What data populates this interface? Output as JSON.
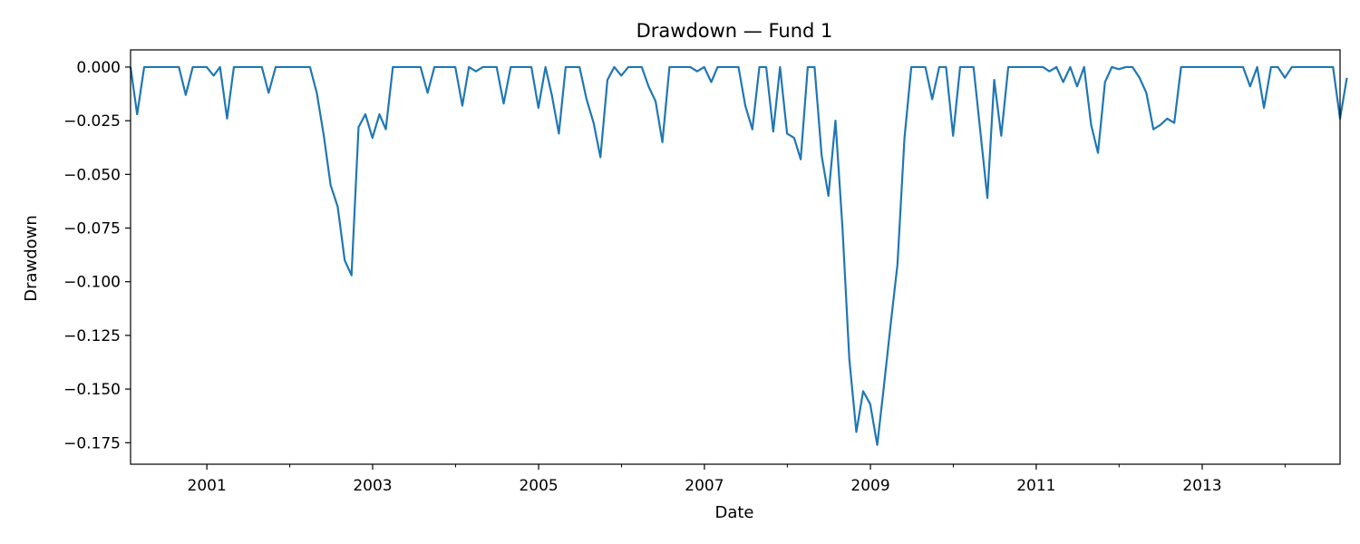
{
  "chart_data": {
    "type": "line",
    "title": "Drawdown — Fund 1",
    "xlabel": "Date",
    "ylabel": "Drawdown",
    "xlim": [
      "2000-01-31",
      "2014-08-31"
    ],
    "ylim": [
      -0.185,
      0.008
    ],
    "grid": false,
    "x_ticks": [
      {
        "date": "2001-01-01",
        "label": "2001"
      },
      {
        "date": "2003-01-01",
        "label": "2003"
      },
      {
        "date": "2005-01-01",
        "label": "2005"
      },
      {
        "date": "2007-01-01",
        "label": "2007"
      },
      {
        "date": "2009-01-01",
        "label": "2009"
      },
      {
        "date": "2011-01-01",
        "label": "2011"
      },
      {
        "date": "2013-01-01",
        "label": "2013"
      }
    ],
    "x_minor_ticks": [
      "2000-01-01",
      "2002-01-01",
      "2004-01-01",
      "2006-01-01",
      "2008-01-01",
      "2010-01-01",
      "2012-01-01",
      "2014-01-01"
    ],
    "y_ticks": [
      {
        "value": 0.0,
        "label": "0.000"
      },
      {
        "value": -0.025,
        "label": "−0.025"
      },
      {
        "value": -0.05,
        "label": "−0.050"
      },
      {
        "value": -0.075,
        "label": "−0.075"
      },
      {
        "value": -0.1,
        "label": "−0.100"
      },
      {
        "value": -0.125,
        "label": "−0.125"
      },
      {
        "value": -0.15,
        "label": "−0.150"
      },
      {
        "value": -0.175,
        "label": "−0.175"
      }
    ],
    "series": [
      {
        "color": "#1f77b4",
        "start": "2000-01",
        "frequency": "monthly",
        "values": [
          0.0,
          -0.022,
          0.0,
          0.0,
          0.0,
          0.0,
          0.0,
          0.0,
          -0.013,
          0.0,
          0.0,
          0.0,
          -0.004,
          0.0,
          -0.024,
          0.0,
          0.0,
          0.0,
          0.0,
          0.0,
          -0.012,
          0.0,
          0.0,
          0.0,
          0.0,
          0.0,
          0.0,
          -0.012,
          -0.032,
          -0.055,
          -0.065,
          -0.09,
          -0.097,
          -0.028,
          -0.022,
          -0.033,
          -0.022,
          -0.029,
          0.0,
          0.0,
          0.0,
          0.0,
          0.0,
          -0.012,
          0.0,
          0.0,
          0.0,
          0.0,
          -0.018,
          0.0,
          -0.002,
          0.0,
          0.0,
          0.0,
          -0.017,
          0.0,
          0.0,
          0.0,
          0.0,
          -0.019,
          0.0,
          -0.013,
          -0.031,
          0.0,
          0.0,
          0.0,
          -0.015,
          -0.026,
          -0.042,
          -0.006,
          0.0,
          -0.004,
          0.0,
          0.0,
          0.0,
          -0.009,
          -0.016,
          -0.035,
          0.0,
          0.0,
          0.0,
          0.0,
          -0.002,
          0.0,
          -0.007,
          0.0,
          0.0,
          0.0,
          0.0,
          -0.018,
          -0.029,
          0.0,
          0.0,
          -0.03,
          0.0,
          -0.031,
          -0.033,
          -0.043,
          0.0,
          0.0,
          -0.041,
          -0.06,
          -0.025,
          -0.075,
          -0.136,
          -0.17,
          -0.151,
          -0.157,
          -0.176,
          -0.15,
          -0.12,
          -0.092,
          -0.033,
          0.0,
          0.0,
          0.0,
          -0.015,
          0.0,
          0.0,
          -0.032,
          0.0,
          0.0,
          0.0,
          -0.03,
          -0.061,
          -0.006,
          -0.032,
          0.0,
          0.0,
          0.0,
          0.0,
          0.0,
          0.0,
          -0.002,
          0.0,
          -0.007,
          0.0,
          -0.009,
          0.0,
          -0.027,
          -0.04,
          -0.007,
          0.0,
          -0.001,
          0.0,
          0.0,
          -0.005,
          -0.012,
          -0.029,
          -0.027,
          -0.024,
          -0.026,
          0.0,
          0.0,
          0.0,
          0.0,
          0.0,
          0.0,
          0.0,
          0.0,
          0.0,
          0.0,
          -0.009,
          0.0,
          -0.019,
          0.0,
          0.0,
          -0.005,
          0.0,
          0.0,
          0.0,
          0.0,
          0.0,
          0.0,
          0.0,
          -0.024,
          -0.005
        ]
      }
    ]
  }
}
